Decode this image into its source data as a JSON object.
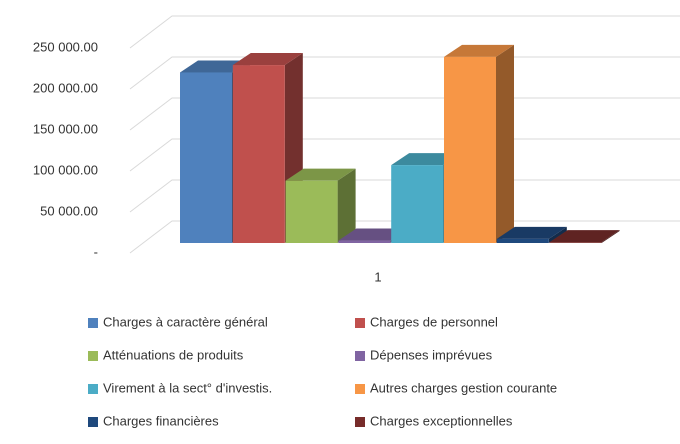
{
  "chart_data": {
    "type": "bar3d",
    "categories": [
      "1"
    ],
    "series": [
      {
        "name": "Charges à caractère général",
        "color": "#4f81bd",
        "values": [
          208000
        ]
      },
      {
        "name": "Charges de personnel",
        "color": "#c0504d",
        "values": [
          217000
        ]
      },
      {
        "name": "Atténuations de produits",
        "color": "#9bbb59",
        "values": [
          76000
        ]
      },
      {
        "name": "Dépenses imprévues",
        "color": "#8064a2",
        "values": [
          3000
        ]
      },
      {
        "name": "Virement à la sect° d'investis.",
        "color": "#4bacc6",
        "values": [
          95000
        ]
      },
      {
        "name": "Autres charges gestion courante",
        "color": "#f79646",
        "values": [
          227000
        ]
      },
      {
        "name": "Charges financières",
        "color": "#1f497d",
        "values": [
          5000
        ]
      },
      {
        "name": "Charges exceptionnelles",
        "color": "#772c2a",
        "values": [
          1000
        ]
      }
    ],
    "ylim": [
      0,
      250000
    ],
    "yticks": [
      {
        "value": 0,
        "label": "-"
      },
      {
        "value": 50000,
        "label": "50 000.00"
      },
      {
        "value": 100000,
        "label": "100 000.00"
      },
      {
        "value": 150000,
        "label": "150 000.00"
      },
      {
        "value": 200000,
        "label": "200 000.00"
      },
      {
        "value": 250000,
        "label": "250 000.00"
      }
    ],
    "grid": true,
    "legend": "bottom"
  }
}
